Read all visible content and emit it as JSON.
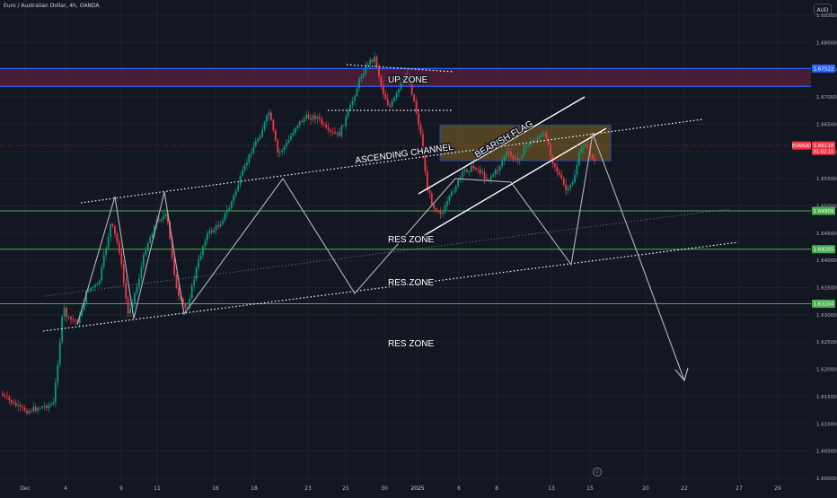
{
  "header": {
    "symbol_title": "Euro / Australian Dollar, 4h, OANDA",
    "currency_badge": "AUD"
  },
  "colors": {
    "background": "#131722",
    "grid": "#1e222d",
    "axis_text": "#b2b5be",
    "up_candle": "#089981",
    "down_candle": "#f23645",
    "res_line": "#4caf50",
    "blue_line": "#2962ff",
    "up_zone_fill": "#5b1f3c",
    "flag_box_fill": "#6b5522",
    "flag_box_border": "#2962ff",
    "annotation": "#ffffff",
    "arrow": "#b2b5be"
  },
  "annotations": {
    "up_zone": "UP ZONE",
    "ascending_channel": "ASCENDING CHANNEL",
    "bearish_flag": "BEARISH FLAG",
    "res_zone": "RES ZONE"
  },
  "price_tags": {
    "symbol": "EURAUD",
    "last_price": "1.66110",
    "countdown": "01:52:15",
    "blue_top": "1.67522",
    "res_1": "1.64909",
    "res_2": "1.64205",
    "res_3": "1.63204"
  },
  "chart_data": {
    "type": "candlestick",
    "y_axis": {
      "range": [
        1.6,
        1.6885
      ],
      "ticks": [
        1.6,
        1.605,
        1.61,
        1.615,
        1.62,
        1.625,
        1.63,
        1.635,
        1.64,
        1.645,
        1.65,
        1.655,
        1.66,
        1.665,
        1.67,
        1.675,
        1.68,
        1.685
      ],
      "tick_labels": [
        "1.60000",
        "1.60500",
        "1.61000",
        "1.61500",
        "1.62000",
        "1.62500",
        "1.63000",
        "1.63500",
        "1.64000",
        "1.64500",
        "1.65000",
        "1.65500",
        "1.66000",
        "1.66500",
        "1.67000",
        "1.67500",
        "1.68000",
        "1.68500"
      ]
    },
    "x_axis": {
      "tick_labels": [
        "Dec",
        "4",
        "9",
        "11",
        "16",
        "18",
        "23",
        "25",
        "30",
        "2025",
        "6",
        "8",
        "13",
        "15",
        "20",
        "22",
        "27",
        "29"
      ]
    },
    "horizontal_levels": [
      {
        "label": "RES ZONE",
        "price": 1.64909
      },
      {
        "label": "RES ZONE",
        "price": 1.64205
      },
      {
        "label": "RES ZONE",
        "price": 1.63204
      },
      {
        "label": "UP ZONE",
        "price_top": 1.67522,
        "price_bottom": 1.67195
      },
      {
        "label": "BEARISH FLAG range",
        "price_top": 1.6648,
        "price_bottom": 1.6583
      }
    ],
    "close_path_anchors": [
      {
        "date": "Dec 1",
        "price": 1.6205
      },
      {
        "date": "Dec 3",
        "price": 1.618
      },
      {
        "date": "Dec 4",
        "price": 1.6365
      },
      {
        "date": "Dec 6",
        "price": 1.64
      },
      {
        "date": "Dec 9",
        "price": 1.652
      },
      {
        "date": "Dec 10",
        "price": 1.638
      },
      {
        "date": "Dec 11",
        "price": 1.652
      },
      {
        "date": "Dec 12",
        "price": 1.639
      },
      {
        "date": "Dec 14",
        "price": 1.6485
      },
      {
        "date": "Dec 17",
        "price": 1.6535
      },
      {
        "date": "Dec 18",
        "price": 1.665
      },
      {
        "date": "Dec 20",
        "price": 1.6585
      },
      {
        "date": "Dec 22",
        "price": 1.6645
      },
      {
        "date": "Dec 25",
        "price": 1.6655
      },
      {
        "date": "Dec 27",
        "price": 1.6755
      },
      {
        "date": "Dec 28",
        "price": 1.679
      },
      {
        "date": "Dec 30",
        "price": 1.672
      },
      {
        "date": "Jan 1",
        "price": 1.6735
      },
      {
        "date": "Jan 3",
        "price": 1.6645
      },
      {
        "date": "Jan 4",
        "price": 1.6535
      },
      {
        "date": "Jan 6",
        "price": 1.657
      },
      {
        "date": "Jan 8",
        "price": 1.6595
      },
      {
        "date": "Jan 10",
        "price": 1.6625
      },
      {
        "date": "Jan 12",
        "price": 1.6635
      },
      {
        "date": "Jan 13",
        "price": 1.6575
      },
      {
        "date": "Jan 14",
        "price": 1.6565
      },
      {
        "date": "Jan 15",
        "price": 1.6655
      },
      {
        "date": "Jan 16",
        "price": 1.6611
      }
    ],
    "grid": true
  }
}
